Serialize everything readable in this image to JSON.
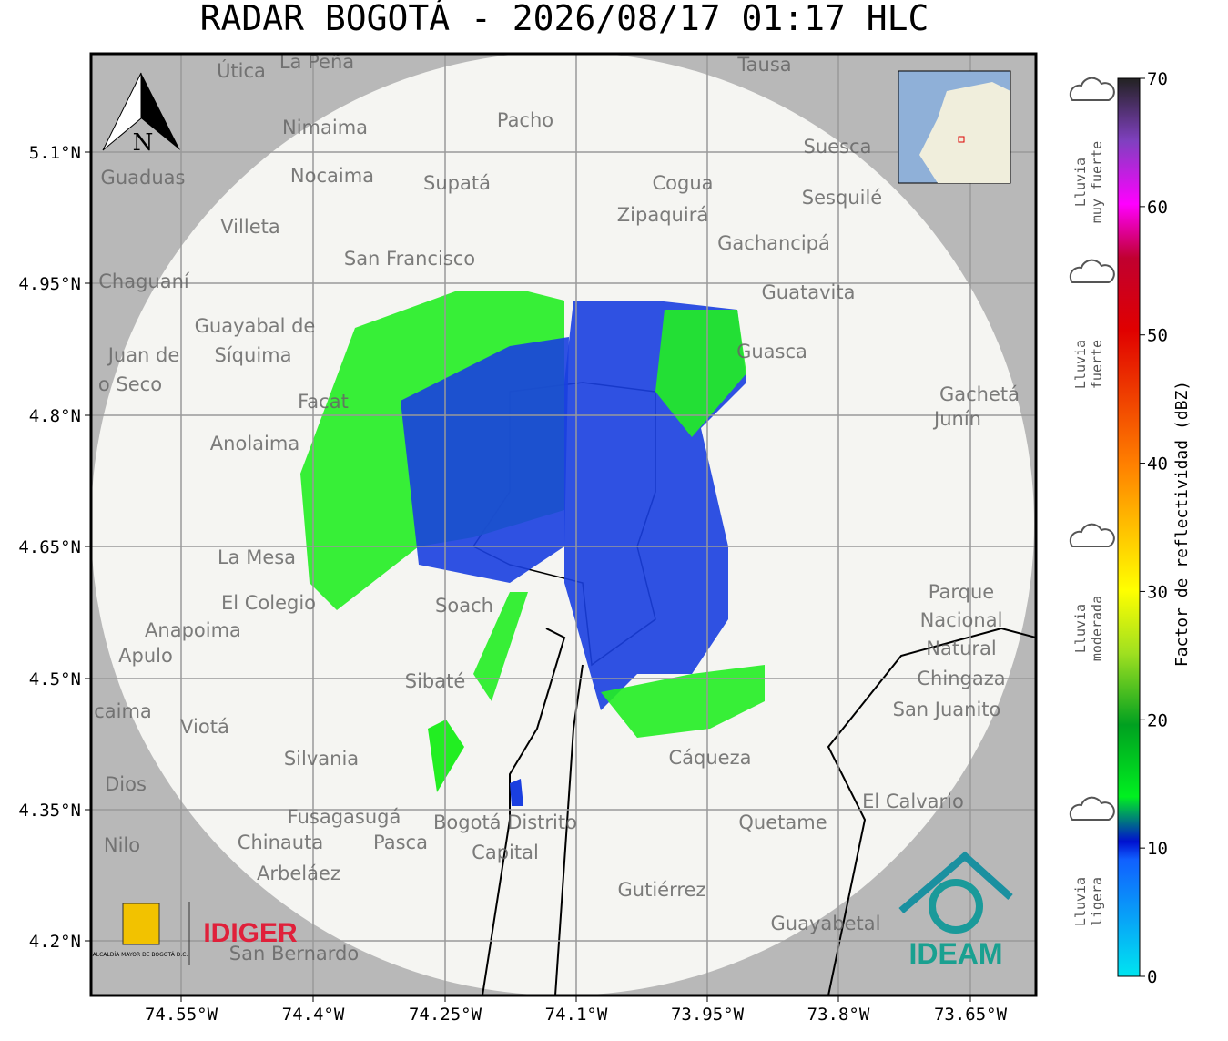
{
  "title": "RADAR BOGOTÁ - 2026/08/17 01:17 HLC",
  "axes": {
    "x_labels": [
      "74.55°W",
      "74.4°W",
      "74.25°W",
      "74.1°W",
      "73.95°W",
      "73.8°W",
      "73.65°W"
    ],
    "y_labels": [
      "5.1°N",
      "4.95°N",
      "4.8°N",
      "4.65°N",
      "4.5°N",
      "4.35°N",
      "4.2°N"
    ]
  },
  "north": "N",
  "places": [
    "Útica",
    "La Peña",
    "Tausa",
    "Nimaima",
    "Pacho",
    "Guaduas",
    "Nocaima",
    "Supatá",
    "Cogua",
    "Suesca",
    "Sesquilé",
    "Zipaquirá",
    "Villeta",
    "Gachancipá",
    "San Francisco",
    "Chaguaní",
    "Guatavita",
    "Guayabal de",
    "Síquima",
    "Guasca",
    "Juan de",
    "o Seco",
    "Facat",
    "Gachetá",
    "Junín",
    "Anolaima",
    "La Mesa",
    "El Colegio",
    "Soach",
    "Parque",
    "Nacional",
    "Natural",
    "Chingaza",
    "Anapoima",
    "Apulo",
    "Sibaté",
    "San Juanito",
    "caima",
    "Viotá",
    "Silvania",
    "Cáqueza",
    "Dios",
    "El Calvario",
    "Fusagasugá",
    "Bogotá Distrito",
    "Quetame",
    "Nilo",
    "Chinauta",
    "Pasca",
    "Capital",
    "Arbeláez",
    "Gutiérrez",
    "Guayabetal",
    "San Bernardo"
  ],
  "logos": {
    "alcaldia": "ALCALDÍA MAYOR DE BOGOTÁ D.C.",
    "idiger": "IDIGER",
    "ideam": "IDEAM"
  },
  "colorbar": {
    "label": "Factor de reflectividad (dBZ)",
    "ticks": [
      0,
      10,
      20,
      30,
      40,
      50,
      60,
      70
    ]
  },
  "rain_levels": [
    [
      "Lluvia",
      "muy fuerte"
    ],
    [
      "Lluvia",
      "fuerte"
    ],
    [
      "Lluvia",
      "moderada"
    ],
    [
      "Lluvia",
      "ligera"
    ]
  ]
}
